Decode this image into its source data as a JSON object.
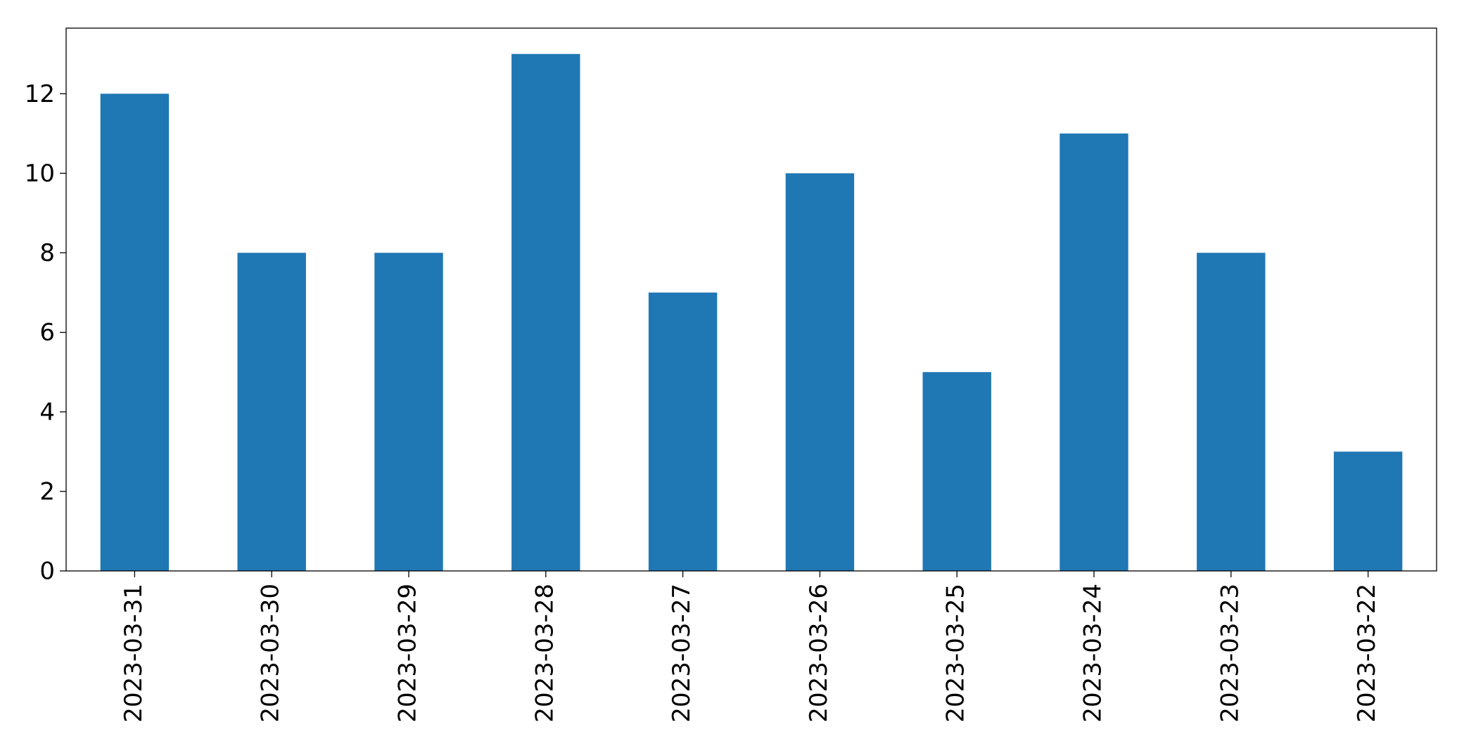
{
  "chart_data": {
    "type": "bar",
    "categories": [
      "2023-03-31",
      "2023-03-30",
      "2023-03-29",
      "2023-03-28",
      "2023-03-27",
      "2023-03-26",
      "2023-03-25",
      "2023-03-24",
      "2023-03-23",
      "2023-03-22"
    ],
    "values": [
      12,
      8,
      8,
      13,
      7,
      10,
      5,
      11,
      8,
      3
    ],
    "color": "#1f77b4",
    "ylim": [
      0,
      13.65
    ],
    "yticks": [
      0,
      2,
      4,
      6,
      8,
      10,
      12
    ],
    "grid": false
  }
}
